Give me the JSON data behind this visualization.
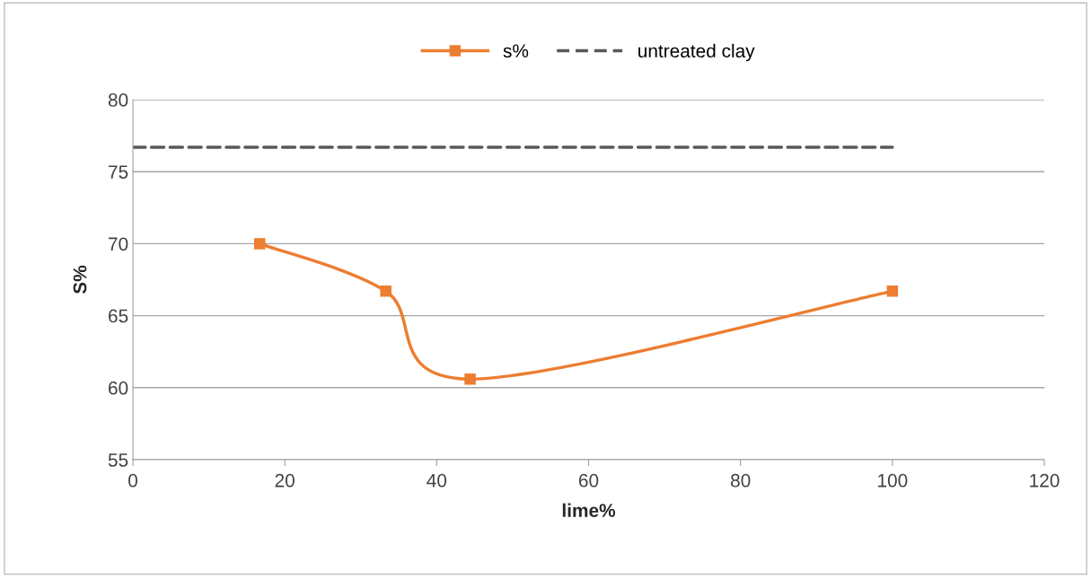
{
  "chart_data": {
    "type": "line",
    "xlabel": "lime%",
    "ylabel": "S%",
    "xlim": [
      0,
      120
    ],
    "xticks": [
      0,
      20,
      40,
      60,
      80,
      100,
      120
    ],
    "ylim": [
      55,
      80
    ],
    "yticks": [
      55,
      60,
      65,
      70,
      75,
      80
    ],
    "grid": "y",
    "legend": "top",
    "series": [
      {
        "name": "s%",
        "color": "#ed7d31",
        "marker": "square",
        "line_style": "solid",
        "x": [
          16.7,
          33.3,
          44.4,
          100
        ],
        "values": [
          70.0,
          66.7,
          60.6,
          66.7
        ]
      },
      {
        "name": "untreated clay",
        "color": "#595959",
        "marker": "none",
        "line_style": "dashed",
        "x": [
          0,
          100
        ],
        "values": [
          76.7,
          76.7
        ]
      }
    ]
  }
}
